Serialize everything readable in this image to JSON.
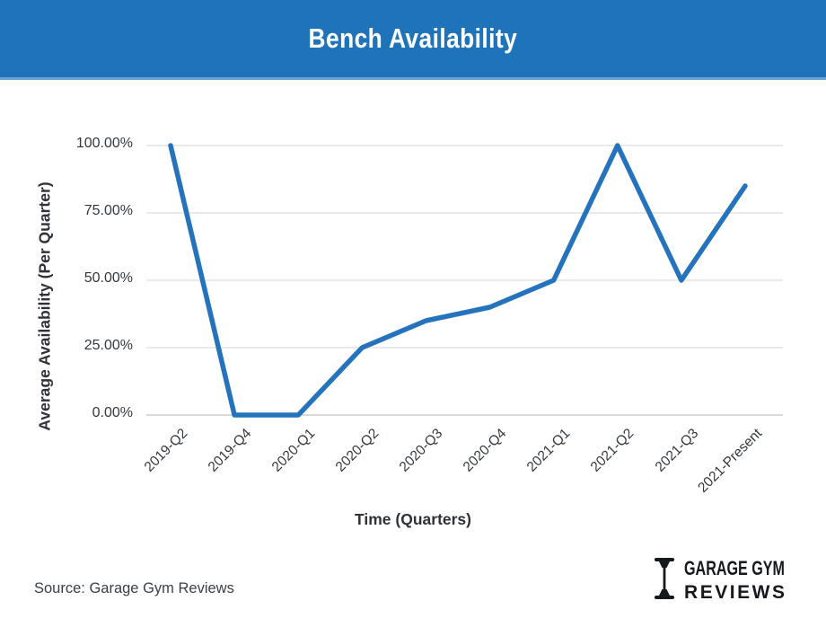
{
  "header": {
    "title": "Bench Availability"
  },
  "chart_data": {
    "type": "line",
    "title": "Bench Availability",
    "xlabel": "Time (Quarters)",
    "ylabel": "Average Availability (Per Quarter)",
    "categories": [
      "2019-Q2",
      "2019-Q4",
      "2020-Q1",
      "2020-Q2",
      "2020-Q3",
      "2020-Q4",
      "2021-Q1",
      "2021-Q2",
      "2021-Q3",
      "2021-Present"
    ],
    "values": [
      100,
      0,
      0,
      25,
      35,
      40,
      50,
      100,
      50,
      85
    ],
    "ylim": [
      0,
      100
    ],
    "y_ticks": [
      {
        "value": 0,
        "label": "0.00%"
      },
      {
        "value": 25,
        "label": "25.00%"
      },
      {
        "value": 50,
        "label": "50.00%"
      },
      {
        "value": 75,
        "label": "75.00%"
      },
      {
        "value": 100,
        "label": "100.00%"
      }
    ],
    "grid": true,
    "legend": false,
    "line_color": "#2473BC"
  },
  "footer": {
    "source": "Source: Garage Gym Reviews",
    "logo": {
      "line1": "GARAGE GYM",
      "line2": "REVIEWS",
      "icon": "dumbbell-icon"
    }
  },
  "colors": {
    "header_bg": "#1F74B9",
    "header_edge": "#6CA2D2",
    "line": "#2473BC",
    "grid": "#E4E4E4",
    "baseline": "#D9D9D9",
    "text": "#33383D",
    "logo": "#16191D"
  }
}
